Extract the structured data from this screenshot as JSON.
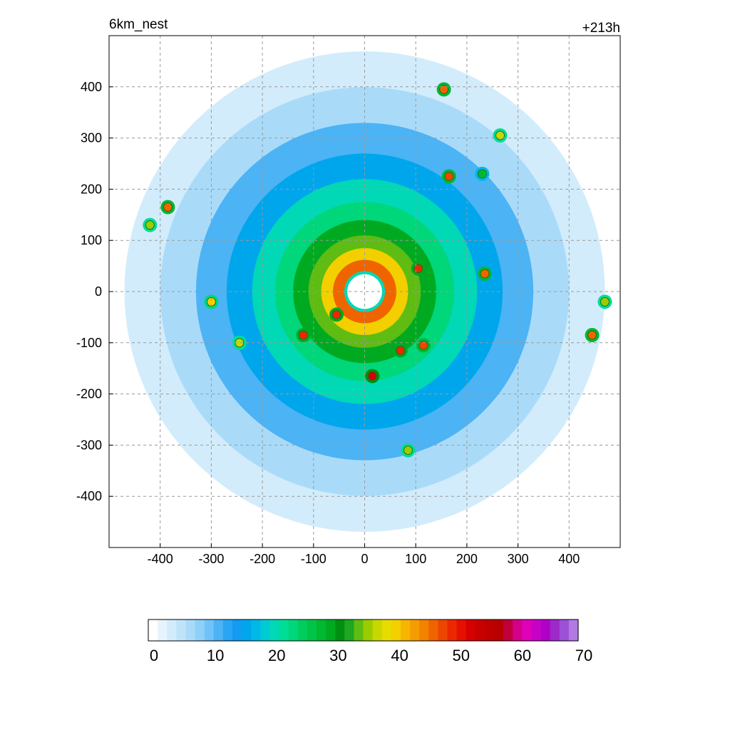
{
  "chart_data": {
    "type": "heatmap",
    "title_left": "6km_nest",
    "title_right": "+213h",
    "xlabel": "",
    "ylabel": "",
    "xlim": [
      -500,
      500
    ],
    "ylim": [
      -500,
      500
    ],
    "x_ticks": [
      "-400",
      "-300",
      "-200",
      "-100",
      "0",
      "100",
      "200",
      "300",
      "400"
    ],
    "y_ticks": [
      "400",
      "300",
      "200",
      "100",
      "0",
      "-100",
      "-200",
      "-300",
      "-400"
    ],
    "x_tick_values": [
      -400,
      -300,
      -200,
      -100,
      0,
      100,
      200,
      300,
      400
    ],
    "y_tick_values": [
      400,
      300,
      200,
      100,
      0,
      -100,
      -200,
      -300,
      -400
    ],
    "grid": true,
    "colorbar": {
      "min": 0,
      "max": 70,
      "tick_labels": [
        "0",
        "10",
        "20",
        "30",
        "40",
        "50",
        "60",
        "70"
      ],
      "tick_values": [
        0,
        10,
        20,
        30,
        40,
        50,
        60,
        70
      ],
      "colors": [
        "#ffffff",
        "#e6f4fd",
        "#d2ecfb",
        "#bfe4fa",
        "#a9dbf9",
        "#8fd0f8",
        "#70c3f7",
        "#4cb3f5",
        "#2aa5f3",
        "#129bf0",
        "#00a6ec",
        "#00b8e6",
        "#00cbd3",
        "#00d8b6",
        "#00dd96",
        "#00d67a",
        "#00cd5e",
        "#00c447",
        "#00b832",
        "#00aa20",
        "#008f10",
        "#20a620",
        "#5fbc12",
        "#9ccc00",
        "#c8d700",
        "#e6dc00",
        "#f3cf00",
        "#f6b600",
        "#f59d00",
        "#f28200",
        "#f06400",
        "#ee4500",
        "#ec2800",
        "#e51000",
        "#d60000",
        "#c80000",
        "#c00000",
        "#b80000",
        "#c0003a",
        "#d4008a",
        "#e000b8",
        "#c800c6",
        "#b000c8",
        "#9d2ac8",
        "#9c50d6",
        "#b07ae2"
      ]
    },
    "storm_center": [
      0,
      0
    ],
    "eye_radius": 40,
    "rings": [
      {
        "r": 600,
        "v": 0
      },
      {
        "r": 470,
        "v": 4
      },
      {
        "r": 400,
        "v": 7
      },
      {
        "r": 330,
        "v": 11
      },
      {
        "r": 270,
        "v": 16
      },
      {
        "r": 220,
        "v": 20
      },
      {
        "r": 175,
        "v": 24
      },
      {
        "r": 140,
        "v": 29
      },
      {
        "r": 110,
        "v": 34
      },
      {
        "r": 85,
        "v": 40
      },
      {
        "r": 62,
        "v": 46
      },
      {
        "r": 40,
        "v": 20
      },
      {
        "r": 34,
        "v": 0
      }
    ],
    "cells": [
      {
        "x": 165,
        "y": 225,
        "v": 48
      },
      {
        "x": 155,
        "y": 395,
        "v": 46
      },
      {
        "x": 235,
        "y": 35,
        "v": 47
      },
      {
        "x": 445,
        "y": -85,
        "v": 46
      },
      {
        "x": 470,
        "y": -20,
        "v": 36
      },
      {
        "x": -385,
        "y": 165,
        "v": 47
      },
      {
        "x": -300,
        "y": -20,
        "v": 40
      },
      {
        "x": -120,
        "y": -85,
        "v": 50
      },
      {
        "x": -55,
        "y": -45,
        "v": 50
      },
      {
        "x": 15,
        "y": -165,
        "v": 52
      },
      {
        "x": 115,
        "y": -105,
        "v": 48
      },
      {
        "x": 70,
        "y": -115,
        "v": 49
      },
      {
        "x": 105,
        "y": 45,
        "v": 50
      },
      {
        "x": -245,
        "y": -100,
        "v": 38
      },
      {
        "x": 85,
        "y": -310,
        "v": 36
      },
      {
        "x": 265,
        "y": 305,
        "v": 38
      },
      {
        "x": 230,
        "y": 230,
        "v": 28
      },
      {
        "x": -420,
        "y": 130,
        "v": 36
      }
    ]
  }
}
